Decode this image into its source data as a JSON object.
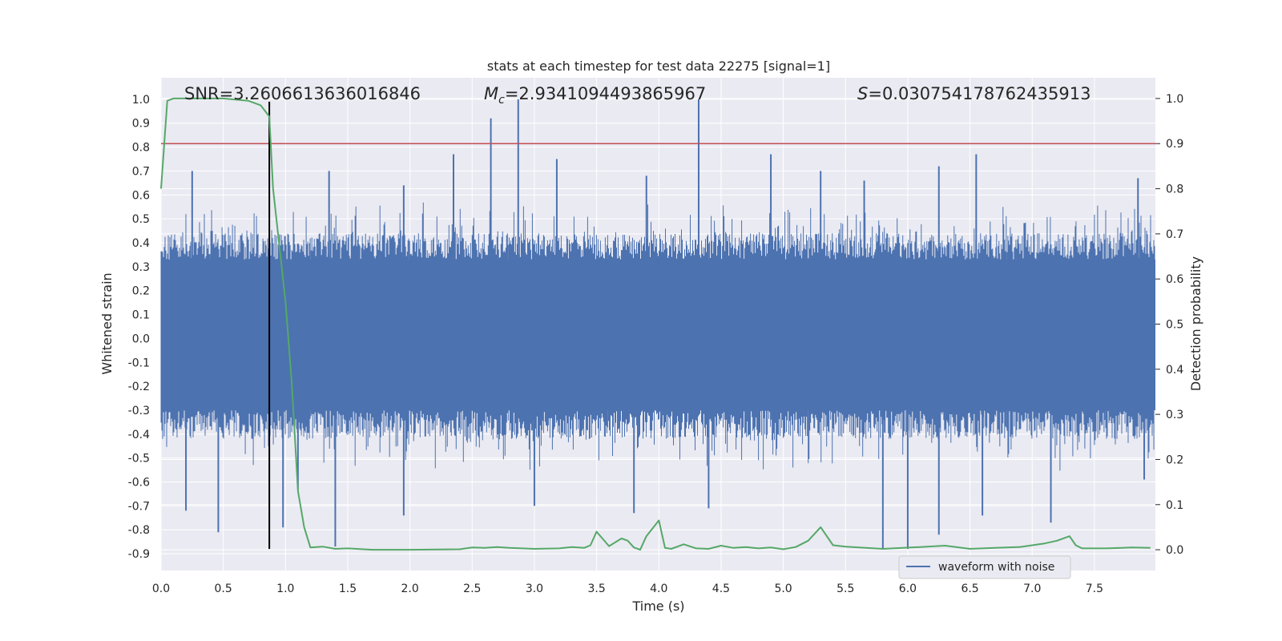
{
  "chart_data": {
    "type": "line",
    "title": "stats at each timestep for test data 22275 [signal=1]",
    "xlabel": "Time (s)",
    "ylabel": "Whitened strain",
    "y2label": "Detection probability",
    "xlim": [
      0,
      7.99
    ],
    "ylim": [
      -0.97,
      1.09
    ],
    "y2lim": [
      -0.046,
      1.046
    ],
    "x_ticks": [
      "0.0",
      "0.5",
      "1.0",
      "1.5",
      "2.0",
      "2.5",
      "3.0",
      "3.5",
      "4.0",
      "4.5",
      "5.0",
      "5.5",
      "6.0",
      "6.5",
      "7.0",
      "7.5"
    ],
    "y_ticks": [
      "1.0",
      "0.9",
      "0.8",
      "0.7",
      "0.6",
      "0.5",
      "0.4",
      "0.3",
      "0.2",
      "0.1",
      "0.0",
      "-0.1",
      "-0.2",
      "-0.3",
      "-0.4",
      "-0.5",
      "-0.6",
      "-0.7",
      "-0.8",
      "-0.9"
    ],
    "y2_ticks": [
      "1.0",
      "0.9",
      "0.8",
      "0.7",
      "0.6",
      "0.5",
      "0.4",
      "0.3",
      "0.2",
      "0.1",
      "0.0"
    ],
    "grid": true,
    "legend": {
      "position": "bottom-right"
    },
    "annotations": {
      "snr": "SNR=3.2606613636016846",
      "mc_sym": "M",
      "mc_sub": "c",
      "mc_val": "=2.9341094493865967",
      "s_sym": "S",
      "s_val": "=0.030754178762435913"
    },
    "threshold": {
      "axis": "right",
      "y": 0.9,
      "color": "#c44e52"
    },
    "merger_line": {
      "x": 0.87,
      "y_top": 0.99,
      "y_bottom": -0.88,
      "color": "#000000"
    },
    "series": [
      {
        "name": "waveform with noise",
        "axis": "left",
        "style": "dense-noise",
        "color": "#4c72b0",
        "core_band": [
          -0.3,
          0.33
        ],
        "envelope": [
          -0.42,
          0.44
        ],
        "spikes": [
          {
            "x": 0.25,
            "y": 0.7
          },
          {
            "x": 2.35,
            "y": 0.77
          },
          {
            "x": 2.65,
            "y": 0.92
          },
          {
            "x": 2.87,
            "y": 1.0
          },
          {
            "x": 3.18,
            "y": 0.75
          },
          {
            "x": 4.32,
            "y": 1.0
          },
          {
            "x": 4.9,
            "y": 0.77
          },
          {
            "x": 5.3,
            "y": 0.7
          },
          {
            "x": 5.65,
            "y": 0.66
          },
          {
            "x": 6.25,
            "y": 0.72
          },
          {
            "x": 6.55,
            "y": 0.77
          },
          {
            "x": 7.85,
            "y": 0.67
          },
          {
            "x": 1.35,
            "y": 0.7
          },
          {
            "x": 3.9,
            "y": 0.68
          },
          {
            "x": 1.95,
            "y": 0.64
          },
          {
            "x": 0.2,
            "y": -0.72
          },
          {
            "x": 0.46,
            "y": -0.81
          },
          {
            "x": 0.98,
            "y": -0.79
          },
          {
            "x": 1.1,
            "y": -0.63
          },
          {
            "x": 1.4,
            "y": -0.87
          },
          {
            "x": 1.95,
            "y": -0.74
          },
          {
            "x": 3.0,
            "y": -0.7
          },
          {
            "x": 3.8,
            "y": -0.73
          },
          {
            "x": 4.4,
            "y": -0.71
          },
          {
            "x": 5.8,
            "y": -0.88
          },
          {
            "x": 6.0,
            "y": -0.88
          },
          {
            "x": 6.25,
            "y": -0.82
          },
          {
            "x": 6.6,
            "y": -0.74
          },
          {
            "x": 7.15,
            "y": -0.77
          },
          {
            "x": 7.9,
            "y": -0.59
          }
        ]
      },
      {
        "name": "",
        "axis": "right",
        "color": "#55a868",
        "x": [
          0.0,
          0.05,
          0.1,
          0.2,
          0.5,
          0.7,
          0.8,
          0.87,
          0.9,
          1.0,
          1.05,
          1.1,
          1.15,
          1.2,
          1.3,
          1.4,
          1.5,
          1.7,
          2.0,
          2.4,
          2.5,
          2.6,
          2.7,
          2.8,
          3.0,
          3.2,
          3.3,
          3.4,
          3.45,
          3.5,
          3.6,
          3.7,
          3.75,
          3.8,
          3.85,
          3.9,
          4.0,
          4.05,
          4.1,
          4.2,
          4.3,
          4.4,
          4.5,
          4.6,
          4.7,
          4.8,
          4.9,
          5.0,
          5.1,
          5.2,
          5.3,
          5.4,
          5.5,
          5.8,
          6.1,
          6.3,
          6.5,
          6.7,
          6.9,
          7.1,
          7.2,
          7.3,
          7.35,
          7.4,
          7.6,
          7.8,
          7.95
        ],
        "y": [
          0.8,
          0.995,
          1.0,
          1.0,
          1.0,
          0.995,
          0.985,
          0.96,
          0.8,
          0.55,
          0.37,
          0.13,
          0.05,
          0.005,
          0.007,
          0.002,
          0.003,
          0.0,
          0.0,
          0.001,
          0.005,
          0.004,
          0.006,
          0.004,
          0.002,
          0.003,
          0.006,
          0.004,
          0.01,
          0.04,
          0.008,
          0.025,
          0.02,
          0.005,
          0.0,
          0.03,
          0.065,
          0.004,
          0.002,
          0.012,
          0.003,
          0.002,
          0.009,
          0.004,
          0.006,
          0.003,
          0.005,
          0.001,
          0.006,
          0.02,
          0.05,
          0.01,
          0.007,
          0.002,
          0.006,
          0.009,
          0.002,
          0.004,
          0.006,
          0.014,
          0.02,
          0.03,
          0.01,
          0.003,
          0.003,
          0.005,
          0.004
        ]
      }
    ]
  }
}
